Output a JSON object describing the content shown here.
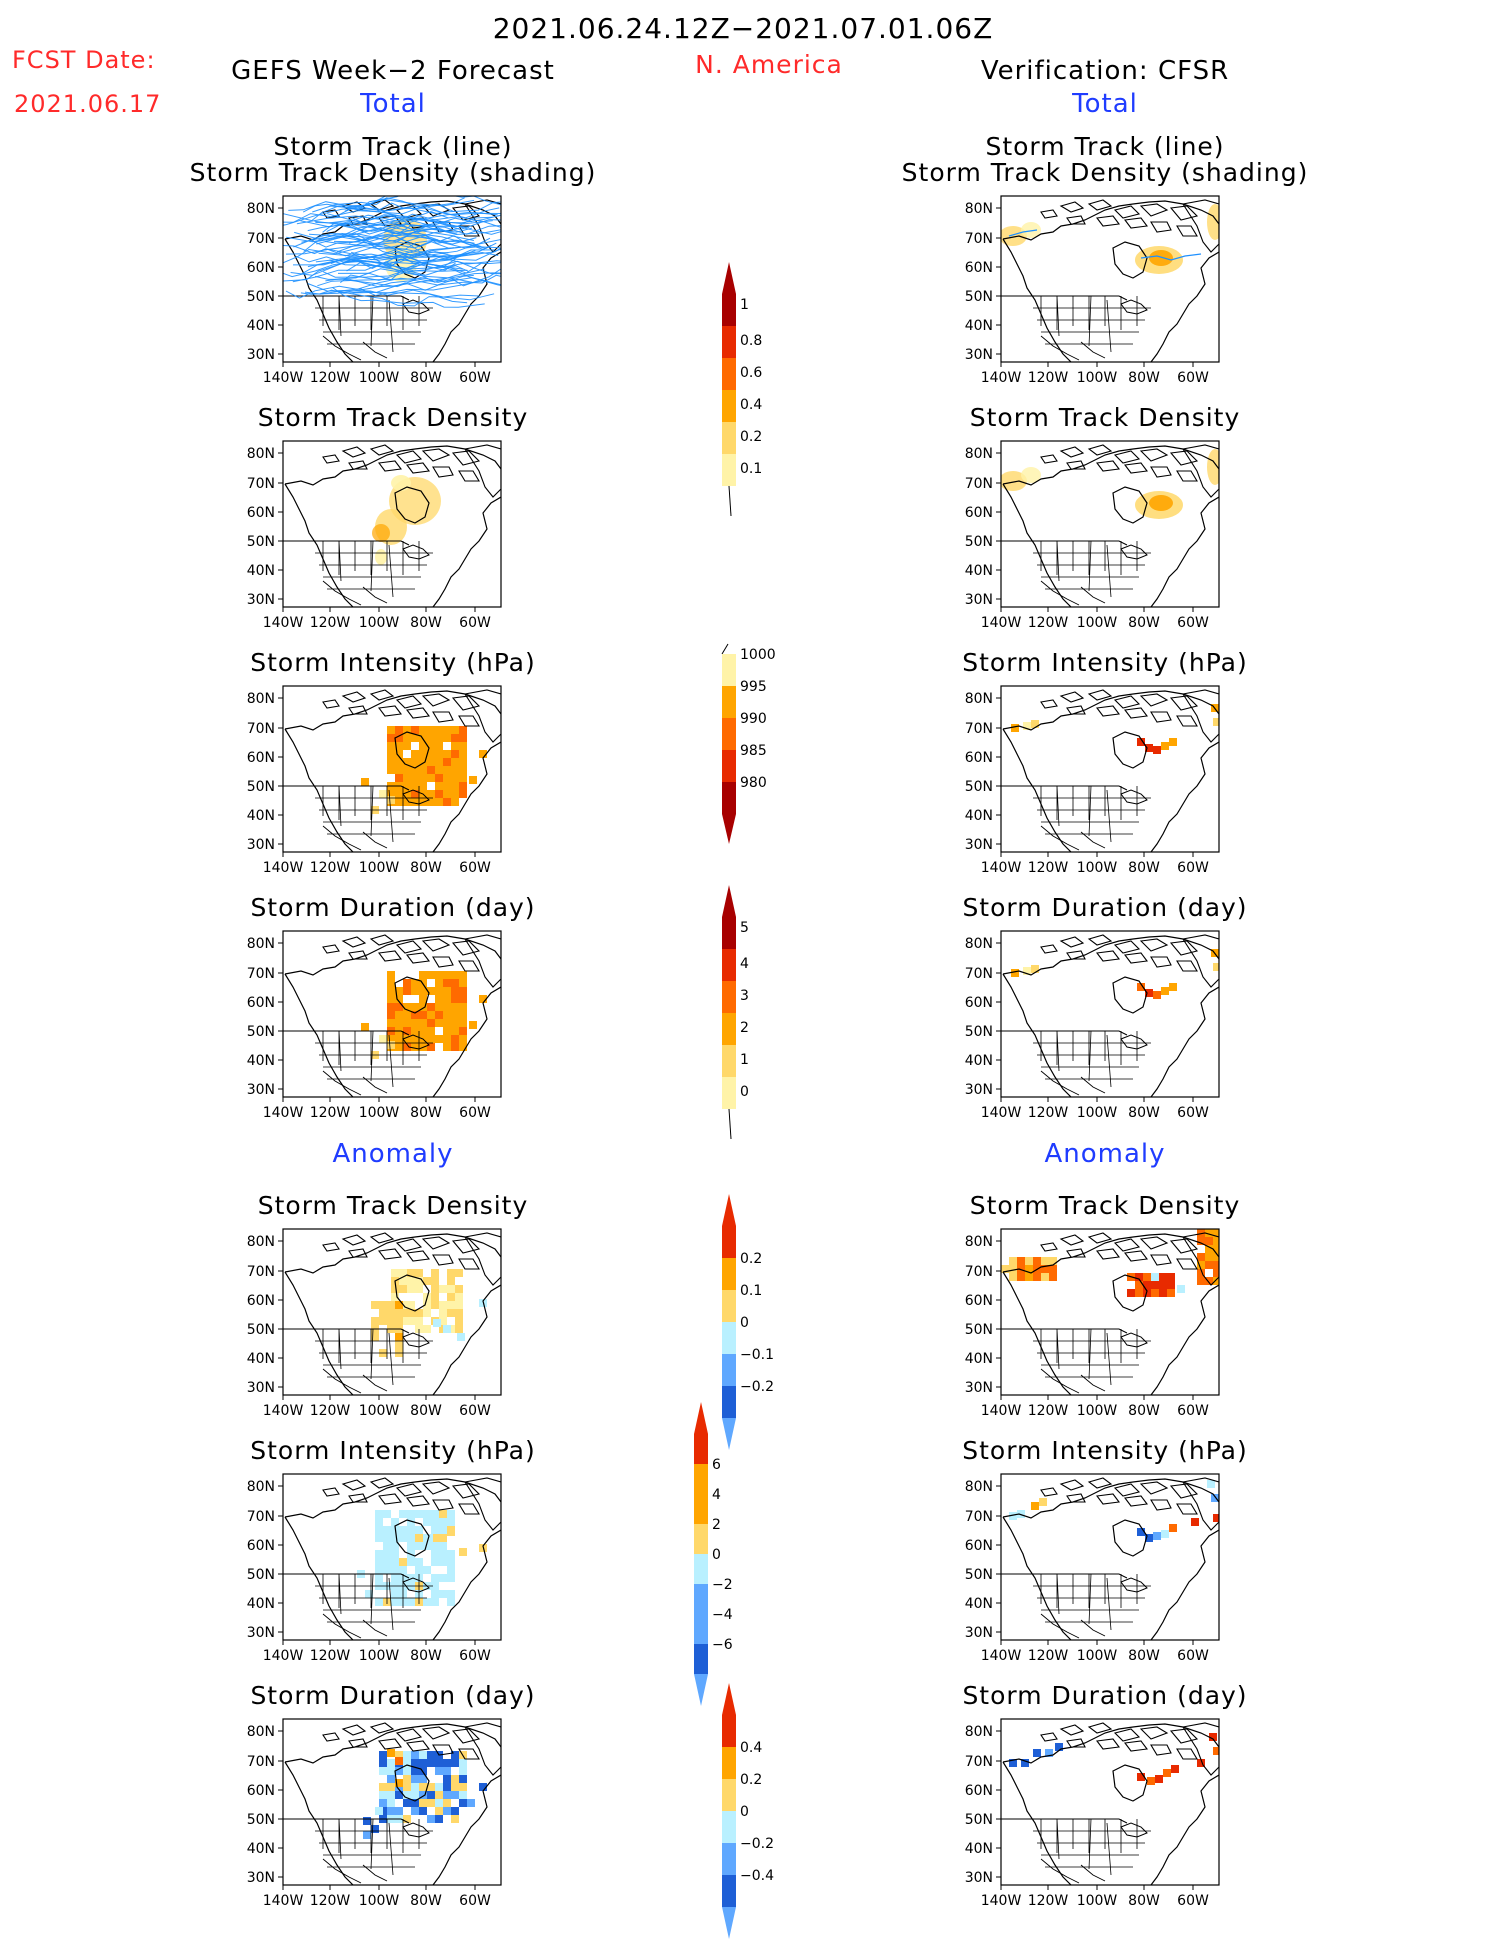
{
  "header": {
    "date_range": "2021.06.24.12Z−2021.07.01.06Z",
    "fcst_date_label": "FCST Date:",
    "fcst_date_value": "2021.06.17",
    "forecast_title": "GEFS Week−2 Forecast",
    "region": "N. America",
    "verification_title": "Verification: CFSR"
  },
  "sections": {
    "total_left": "Total",
    "total_right": "Total",
    "anomaly_left": "Anomaly",
    "anomaly_right": "Anomaly"
  },
  "panel_titles": {
    "track_line": "Storm Track (line)",
    "track_density_shading": "Storm Track Density (shading)",
    "track_density": "Storm Track Density",
    "intensity": "Storm Intensity (hPa)",
    "duration": "Storm Duration (day)"
  },
  "axes": {
    "lat_ticks": [
      "80N",
      "70N",
      "60N",
      "50N",
      "40N",
      "30N"
    ],
    "lon_ticks": [
      "140W",
      "120W",
      "100W",
      "80W",
      "60W"
    ]
  },
  "colors": {
    "track_line": "#1e90ff",
    "shade_light": "#fff3a8",
    "shade_yellow": "#ffd86a",
    "shade_orange": "#ffa500",
    "shade_dark_orange": "#ff6a00",
    "shade_red": "#e82a00",
    "neg_light": "#b9f0ff",
    "neg_mid": "#5fa8ff",
    "neg_dark": "#1e5fd6"
  },
  "colorbars": {
    "track_density": [
      "1",
      "0.8",
      "0.6",
      "0.4",
      "0.2",
      "0.1"
    ],
    "intensity": [
      "1000",
      "995",
      "990",
      "985",
      "980"
    ],
    "duration": [
      "5",
      "4",
      "3",
      "2",
      "1",
      "0"
    ],
    "anom_density": [
      "0.2",
      "0.1",
      "0",
      "−0.1",
      "−0.2"
    ],
    "anom_intensity": [
      "6",
      "4",
      "2",
      "0",
      "−2",
      "−4",
      "−6"
    ],
    "anom_duration": [
      "0.4",
      "0.2",
      "0",
      "−0.2",
      "−0.4"
    ]
  }
}
